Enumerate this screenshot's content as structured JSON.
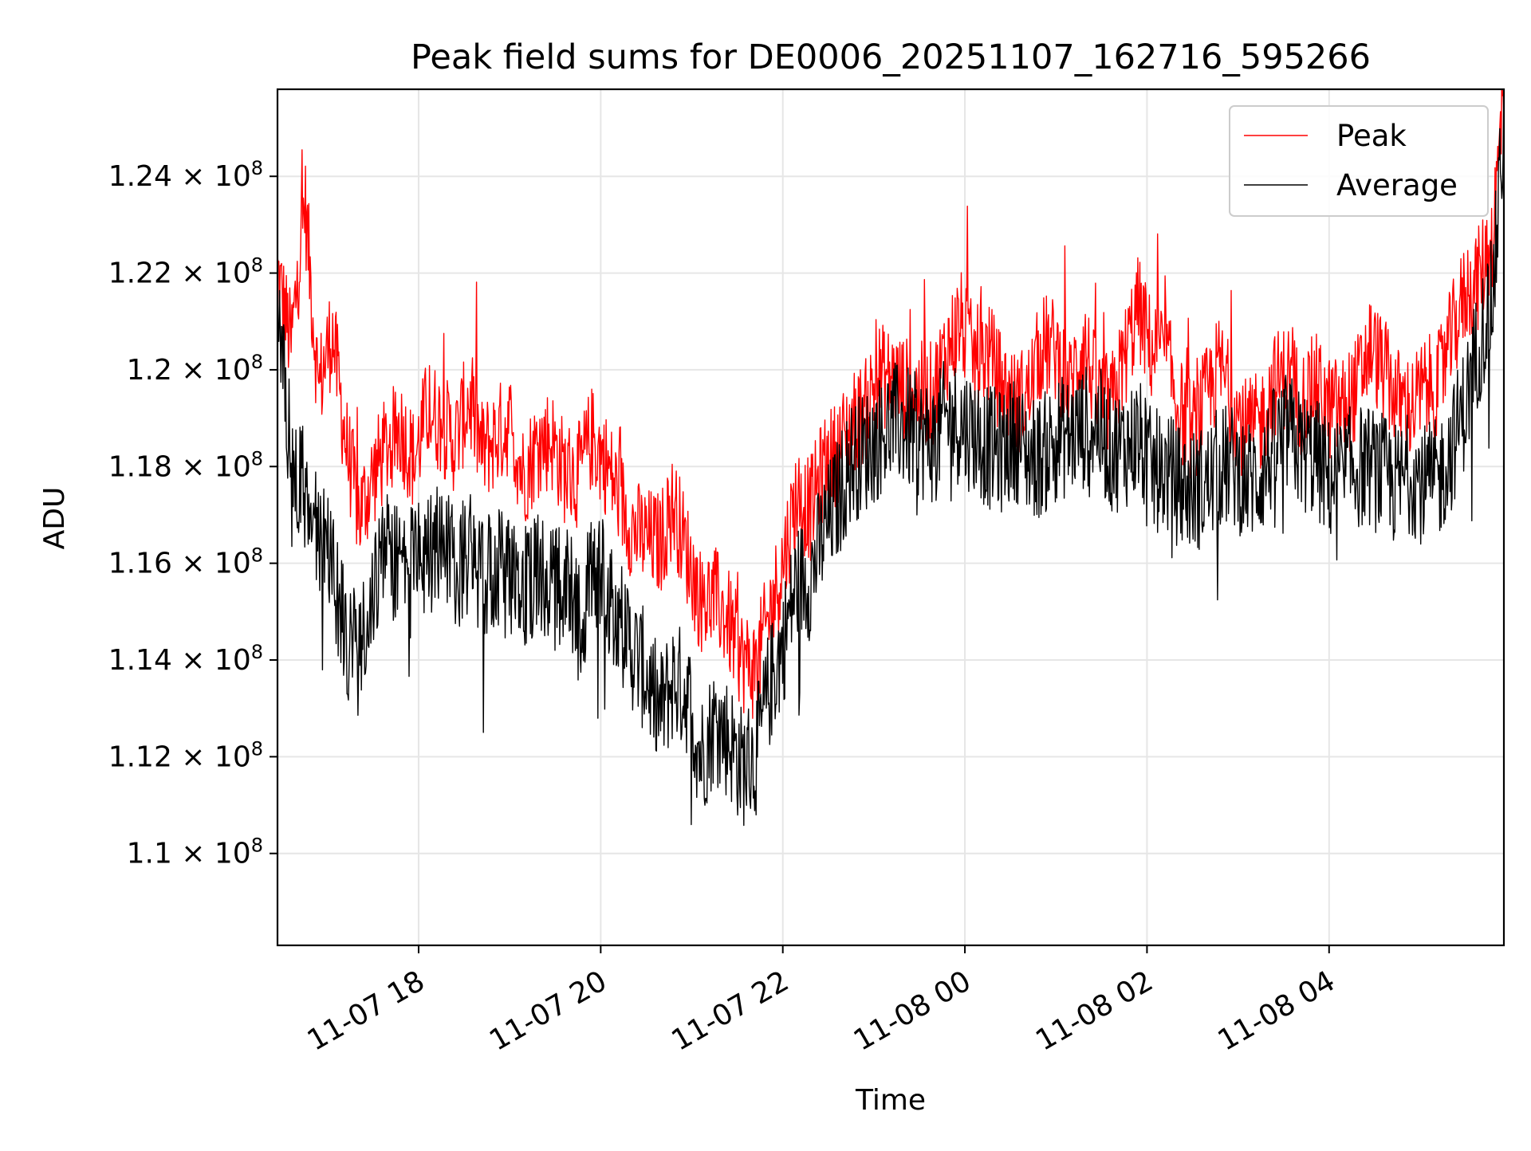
{
  "chart_data": {
    "type": "line",
    "title": "Peak field sums for DE0006_20251107_162716_595266",
    "xlabel": "Time",
    "ylabel": "ADU",
    "grid": true,
    "legend_position": "top-right",
    "x_range_hours": [
      16.45,
      29.92
    ],
    "ylim": [
      108.1,
      125.8
    ],
    "y_unit_note": "values in units of 1e6 ADU",
    "x_ticks": [
      {
        "hours": 18,
        "label": "11-07 18"
      },
      {
        "hours": 20,
        "label": "11-07 20"
      },
      {
        "hours": 22,
        "label": "11-07 22"
      },
      {
        "hours": 24,
        "label": "11-08 00"
      },
      {
        "hours": 26,
        "label": "11-08 02"
      },
      {
        "hours": 28,
        "label": "11-08 04"
      }
    ],
    "y_ticks": [
      {
        "value": 110,
        "mantissa": "1.1",
        "exponent": "8"
      },
      {
        "value": 112,
        "mantissa": "1.12",
        "exponent": "8"
      },
      {
        "value": 114,
        "mantissa": "1.14",
        "exponent": "8"
      },
      {
        "value": 116,
        "mantissa": "1.16",
        "exponent": "8"
      },
      {
        "value": 118,
        "mantissa": "1.18",
        "exponent": "8"
      },
      {
        "value": 120,
        "mantissa": "1.2",
        "exponent": "8"
      },
      {
        "value": 122,
        "mantissa": "1.22",
        "exponent": "8"
      },
      {
        "value": 124,
        "mantissa": "1.24",
        "exponent": "8"
      }
    ],
    "series": [
      {
        "name": "Peak",
        "color": "#ff0000",
        "x_hours": [
          16.45,
          16.6,
          16.75,
          16.9,
          17.05,
          17.2,
          17.35,
          17.5,
          17.65,
          17.8,
          17.95,
          18.1,
          18.25,
          18.4,
          18.55,
          18.7,
          18.85,
          19.0,
          19.15,
          19.3,
          19.45,
          19.6,
          19.75,
          19.9,
          20.05,
          20.2,
          20.35,
          20.5,
          20.65,
          20.8,
          20.95,
          21.1,
          21.25,
          21.4,
          21.55,
          21.7,
          21.85,
          22.0,
          22.15,
          22.3,
          22.45,
          22.6,
          22.75,
          22.9,
          23.05,
          23.2,
          23.35,
          23.5,
          23.65,
          23.8,
          23.95,
          24.1,
          24.25,
          24.4,
          24.55,
          24.7,
          24.85,
          25.0,
          25.15,
          25.3,
          25.45,
          25.6,
          25.75,
          25.9,
          26.05,
          26.2,
          26.35,
          26.5,
          26.65,
          26.8,
          26.95,
          27.1,
          27.25,
          27.4,
          27.55,
          27.7,
          27.85,
          28.0,
          28.15,
          28.3,
          28.45,
          28.6,
          28.75,
          28.9,
          29.05,
          29.2,
          29.35,
          29.5,
          29.65,
          29.8,
          29.92
        ],
        "values": [
          122.0,
          120.5,
          123.5,
          119.6,
          120.8,
          118.5,
          117.0,
          117.8,
          118.4,
          118.8,
          118.1,
          119.2,
          118.9,
          118.5,
          119.4,
          118.3,
          118.6,
          118.9,
          117.8,
          118.4,
          118.6,
          117.9,
          117.8,
          118.6,
          118.1,
          117.4,
          116.7,
          116.5,
          116.4,
          117.2,
          116.2,
          115.2,
          115.3,
          114.8,
          114.0,
          113.8,
          114.9,
          116.0,
          117.4,
          117.1,
          118.0,
          118.3,
          118.9,
          119.1,
          119.9,
          119.8,
          119.6,
          119.5,
          119.5,
          120.4,
          121.0,
          120.2,
          120.4,
          119.7,
          119.3,
          119.5,
          120.5,
          120.4,
          119.6,
          120.6,
          119.5,
          119.2,
          120.2,
          121.3,
          120.4,
          120.4,
          119.2,
          118.7,
          119.4,
          120.1,
          119.2,
          118.7,
          118.9,
          119.7,
          119.9,
          119.3,
          119.7,
          119.2,
          119.2,
          119.6,
          120.5,
          120.0,
          119.4,
          119.2,
          119.6,
          119.7,
          120.7,
          121.6,
          121.9,
          122.8,
          125.8
        ]
      },
      {
        "name": "Average",
        "color": "#000000",
        "x_hours": [
          16.45,
          16.6,
          16.75,
          16.9,
          17.05,
          17.2,
          17.35,
          17.5,
          17.65,
          17.8,
          17.95,
          18.1,
          18.25,
          18.4,
          18.55,
          18.7,
          18.85,
          19.0,
          19.15,
          19.3,
          19.45,
          19.6,
          19.75,
          19.9,
          20.05,
          20.2,
          20.35,
          20.5,
          20.65,
          20.8,
          20.95,
          21.1,
          21.25,
          21.4,
          21.55,
          21.7,
          21.85,
          22.0,
          22.15,
          22.3,
          22.45,
          22.6,
          22.75,
          22.9,
          23.05,
          23.2,
          23.35,
          23.5,
          23.65,
          23.8,
          23.95,
          24.1,
          24.25,
          24.4,
          24.55,
          24.7,
          24.85,
          25.0,
          25.15,
          25.3,
          25.45,
          25.6,
          25.75,
          25.9,
          26.05,
          26.2,
          26.35,
          26.5,
          26.65,
          26.8,
          26.95,
          27.1,
          27.25,
          27.4,
          27.55,
          27.7,
          27.85,
          28.0,
          28.15,
          28.3,
          28.45,
          28.6,
          28.75,
          28.9,
          29.05,
          29.2,
          29.35,
          29.5,
          29.65,
          29.8,
          29.92
        ],
        "values": [
          121.0,
          118.2,
          117.5,
          116.6,
          115.9,
          114.4,
          114.1,
          115.6,
          116.2,
          116.0,
          115.9,
          116.1,
          116.5,
          115.8,
          116.3,
          115.7,
          116.0,
          115.6,
          115.5,
          115.9,
          115.4,
          115.7,
          114.8,
          115.6,
          115.6,
          114.9,
          114.2,
          113.7,
          112.9,
          113.6,
          113.3,
          112.0,
          112.7,
          112.4,
          111.8,
          112.0,
          113.4,
          114.3,
          115.6,
          115.7,
          116.6,
          117.3,
          118.1,
          118.3,
          118.6,
          118.9,
          118.8,
          118.6,
          118.5,
          119.0,
          118.9,
          118.7,
          118.4,
          118.3,
          118.6,
          118.2,
          118.2,
          118.6,
          118.6,
          118.8,
          118.9,
          118.3,
          118.4,
          118.6,
          117.9,
          117.9,
          117.6,
          117.5,
          117.6,
          118.0,
          118.0,
          117.7,
          117.8,
          118.4,
          118.7,
          118.3,
          118.2,
          117.7,
          117.9,
          118.0,
          118.0,
          117.8,
          117.6,
          117.9,
          117.6,
          117.7,
          118.4,
          119.3,
          120.6,
          121.5,
          125.2
        ]
      }
    ]
  }
}
